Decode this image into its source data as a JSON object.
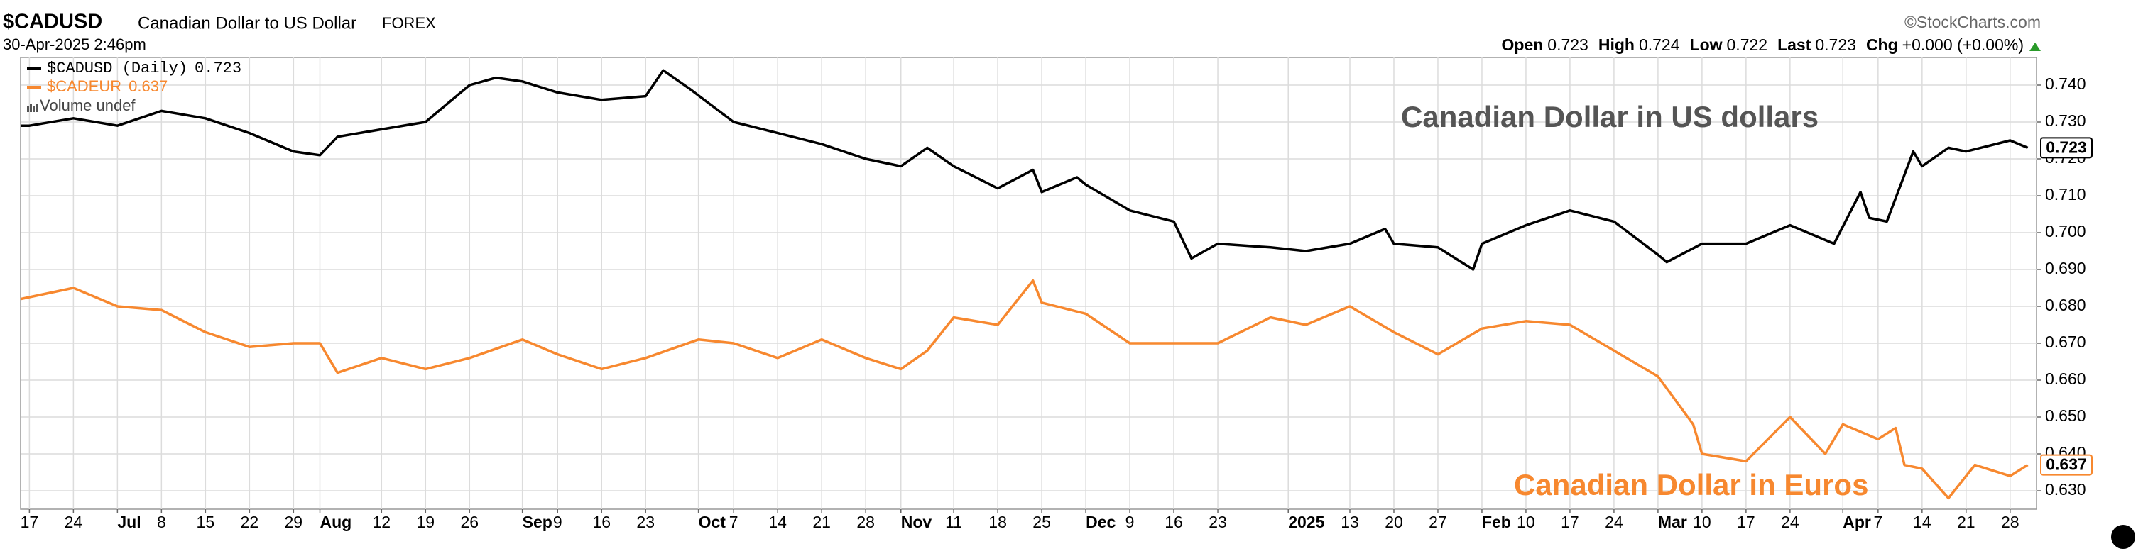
{
  "chart_data": {
    "type": "line",
    "symbol": "$CADUSD",
    "title": "Canadian Dollar to US Dollar",
    "exchange": "FOREX",
    "timestamp": "30-Apr-2025 2:46pm",
    "source": "©StockCharts.com",
    "quote": [
      {
        "label": "Open",
        "value": "0.723"
      },
      {
        "label": "High",
        "value": "0.724"
      },
      {
        "label": "Low",
        "value": "0.722"
      },
      {
        "label": "Last",
        "value": "0.723"
      },
      {
        "label": "Chg",
        "value": "+0.000 (+0.00%)"
      }
    ],
    "volume_legend": "Volume undef",
    "annotations": [
      "Canadian Dollar in US dollars",
      "Canadian Dollar in Euros"
    ],
    "grid": true,
    "xlim": [
      "2024-06-14",
      "2025-05-01"
    ],
    "ylim": [
      0.625,
      0.7475
    ],
    "yticks": [
      {
        "value": 0.63,
        "label": "0.630"
      },
      {
        "value": 0.64,
        "label": "0.640"
      },
      {
        "value": 0.65,
        "label": "0.650"
      },
      {
        "value": 0.66,
        "label": "0.660"
      },
      {
        "value": 0.67,
        "label": "0.670"
      },
      {
        "value": 0.68,
        "label": "0.680"
      },
      {
        "value": 0.69,
        "label": "0.690"
      },
      {
        "value": 0.7,
        "label": "0.700"
      },
      {
        "value": 0.71,
        "label": "0.710"
      },
      {
        "value": 0.72,
        "label": "0.720"
      },
      {
        "value": 0.73,
        "label": "0.730"
      },
      {
        "value": 0.74,
        "label": "0.740"
      }
    ],
    "xticks": [
      {
        "value": "2024-06-17",
        "label": "17"
      },
      {
        "value": "2024-06-24",
        "label": "24"
      },
      {
        "value": "2024-07-01",
        "label": "Jul"
      },
      {
        "value": "2024-07-08",
        "label": "8"
      },
      {
        "value": "2024-07-15",
        "label": "15"
      },
      {
        "value": "2024-07-22",
        "label": "22"
      },
      {
        "value": "2024-07-29",
        "label": "29"
      },
      {
        "value": "2024-08-01",
        "label": "Aug"
      },
      {
        "value": "2024-08-12",
        "label": "12"
      },
      {
        "value": "2024-08-19",
        "label": "19"
      },
      {
        "value": "2024-08-26",
        "label": "26"
      },
      {
        "value": "2024-09-03",
        "label": "Sep"
      },
      {
        "value": "2024-09-09",
        "label": "9"
      },
      {
        "value": "2024-09-16",
        "label": "16"
      },
      {
        "value": "2024-09-23",
        "label": "23"
      },
      {
        "value": "2024-10-01",
        "label": "Oct"
      },
      {
        "value": "2024-10-07",
        "label": "7"
      },
      {
        "value": "2024-10-14",
        "label": "14"
      },
      {
        "value": "2024-10-21",
        "label": "21"
      },
      {
        "value": "2024-10-28",
        "label": "28"
      },
      {
        "value": "2024-11-01",
        "label": "Nov"
      },
      {
        "value": "2024-11-11",
        "label": "11"
      },
      {
        "value": "2024-11-18",
        "label": "18"
      },
      {
        "value": "2024-11-25",
        "label": "25"
      },
      {
        "value": "2024-12-02",
        "label": "Dec"
      },
      {
        "value": "2024-12-09",
        "label": "9"
      },
      {
        "value": "2024-12-16",
        "label": "16"
      },
      {
        "value": "2024-12-23",
        "label": "23"
      },
      {
        "value": "2025-01-02",
        "label": "2025"
      },
      {
        "value": "2025-01-13",
        "label": "13"
      },
      {
        "value": "2025-01-20",
        "label": "20"
      },
      {
        "value": "2025-01-27",
        "label": "27"
      },
      {
        "value": "2025-02-03",
        "label": "Feb"
      },
      {
        "value": "2025-02-10",
        "label": "10"
      },
      {
        "value": "2025-02-17",
        "label": "17"
      },
      {
        "value": "2025-02-24",
        "label": "24"
      },
      {
        "value": "2025-03-03",
        "label": "Mar"
      },
      {
        "value": "2025-03-10",
        "label": "10"
      },
      {
        "value": "2025-03-17",
        "label": "17"
      },
      {
        "value": "2025-03-24",
        "label": "24"
      },
      {
        "value": "2025-04-01",
        "label": "Apr"
      },
      {
        "value": "2025-04-07",
        "label": "7"
      },
      {
        "value": "2025-04-14",
        "label": "14"
      },
      {
        "value": "2025-04-21",
        "label": "21"
      },
      {
        "value": "2025-04-28",
        "label": "28"
      }
    ],
    "series": [
      {
        "name": "$CADUSD (Daily)",
        "color": "#000000",
        "last_value_label": "0.723",
        "x": [
          "2024-06-14",
          "2024-06-17",
          "2024-06-24",
          "2024-07-01",
          "2024-07-08",
          "2024-07-15",
          "2024-07-22",
          "2024-07-29",
          "2024-08-01",
          "2024-08-05",
          "2024-08-12",
          "2024-08-19",
          "2024-08-26",
          "2024-08-29",
          "2024-09-03",
          "2024-09-09",
          "2024-09-16",
          "2024-09-23",
          "2024-09-25",
          "2024-09-30",
          "2024-10-07",
          "2024-10-14",
          "2024-10-21",
          "2024-10-28",
          "2024-11-01",
          "2024-11-06",
          "2024-11-11",
          "2024-11-18",
          "2024-11-22",
          "2024-11-25",
          "2024-11-29",
          "2024-12-02",
          "2024-12-09",
          "2024-12-16",
          "2024-12-18",
          "2024-12-23",
          "2024-12-31",
          "2025-01-06",
          "2025-01-13",
          "2025-01-17",
          "2025-01-20",
          "2025-01-27",
          "2025-01-31",
          "2025-02-03",
          "2025-02-10",
          "2025-02-17",
          "2025-02-24",
          "2025-03-03",
          "2025-03-04",
          "2025-03-10",
          "2025-03-17",
          "2025-03-24",
          "2025-03-31",
          "2025-04-03",
          "2025-04-04",
          "2025-04-08",
          "2025-04-11",
          "2025-04-14",
          "2025-04-17",
          "2025-04-21",
          "2025-04-28",
          "2025-04-30"
        ],
        "values": [
          0.729,
          0.729,
          0.731,
          0.729,
          0.733,
          0.731,
          0.727,
          0.722,
          0.721,
          0.726,
          0.728,
          0.73,
          0.74,
          0.742,
          0.741,
          0.738,
          0.736,
          0.737,
          0.744,
          0.739,
          0.73,
          0.727,
          0.724,
          0.72,
          0.718,
          0.723,
          0.718,
          0.712,
          0.717,
          0.711,
          0.715,
          0.713,
          0.706,
          0.703,
          0.693,
          0.697,
          0.696,
          0.695,
          0.697,
          0.701,
          0.697,
          0.696,
          0.69,
          0.697,
          0.702,
          0.706,
          0.703,
          0.694,
          0.692,
          0.697,
          0.697,
          0.702,
          0.697,
          0.711,
          0.704,
          0.703,
          0.722,
          0.718,
          0.723,
          0.722,
          0.725,
          0.723
        ]
      },
      {
        "name": "$CADEUR",
        "color": "#f7882f",
        "last_value_label": "0.637",
        "x": [
          "2024-06-14",
          "2024-06-24",
          "2024-07-01",
          "2024-07-08",
          "2024-07-15",
          "2024-07-22",
          "2024-07-29",
          "2024-08-01",
          "2024-08-05",
          "2024-08-12",
          "2024-08-19",
          "2024-08-26",
          "2024-09-03",
          "2024-09-09",
          "2024-09-16",
          "2024-09-23",
          "2024-10-01",
          "2024-10-07",
          "2024-10-14",
          "2024-10-21",
          "2024-10-28",
          "2024-11-01",
          "2024-11-06",
          "2024-11-11",
          "2024-11-18",
          "2024-11-22",
          "2024-11-25",
          "2024-12-02",
          "2024-12-09",
          "2024-12-16",
          "2024-12-23",
          "2024-12-31",
          "2025-01-06",
          "2025-01-13",
          "2025-01-20",
          "2025-01-27",
          "2025-02-03",
          "2025-02-10",
          "2025-02-17",
          "2025-02-24",
          "2025-03-03",
          "2025-03-07",
          "2025-03-10",
          "2025-03-17",
          "2025-03-24",
          "2025-03-28",
          "2025-04-01",
          "2025-04-07",
          "2025-04-09",
          "2025-04-10",
          "2025-04-14",
          "2025-04-17",
          "2025-04-22",
          "2025-04-28",
          "2025-04-30"
        ],
        "values": [
          0.682,
          0.685,
          0.68,
          0.679,
          0.673,
          0.669,
          0.67,
          0.67,
          0.662,
          0.666,
          0.663,
          0.666,
          0.671,
          0.667,
          0.663,
          0.666,
          0.671,
          0.67,
          0.666,
          0.671,
          0.666,
          0.663,
          0.668,
          0.677,
          0.675,
          0.687,
          0.681,
          0.678,
          0.67,
          0.67,
          0.67,
          0.677,
          0.675,
          0.68,
          0.673,
          0.667,
          0.674,
          0.676,
          0.675,
          0.668,
          0.661,
          0.648,
          0.64,
          0.638,
          0.65,
          0.64,
          0.648,
          0.644,
          0.647,
          0.637,
          0.636,
          0.628,
          0.637,
          0.634,
          0.637
        ]
      }
    ]
  }
}
